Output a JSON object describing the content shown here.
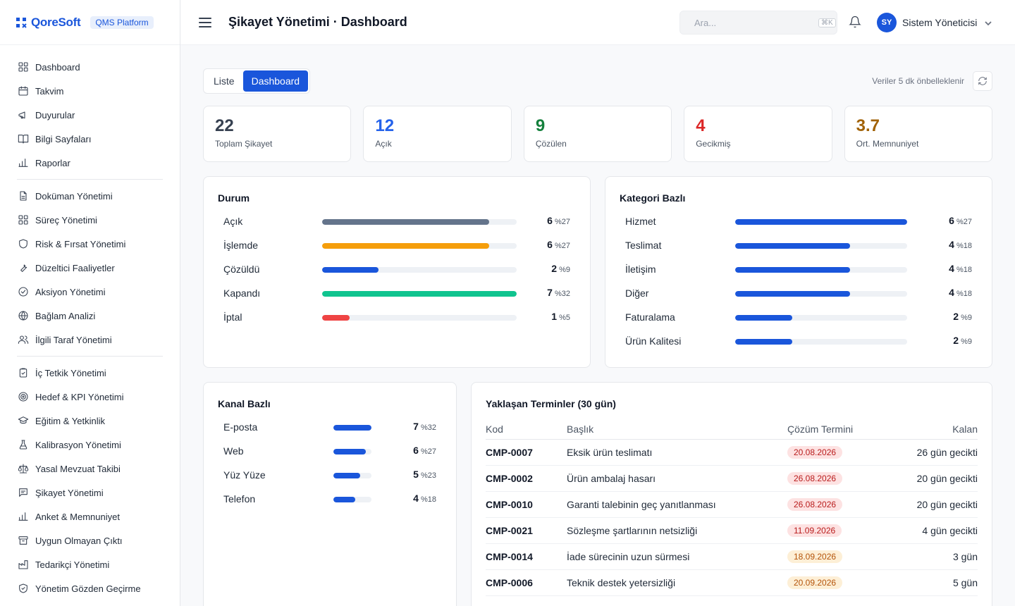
{
  "brand": {
    "name": "QoreSoft",
    "badge": "QMS Platform"
  },
  "header": {
    "title": "Şikayet Yönetimi · Dashboard",
    "search_placeholder": "Ara...",
    "search_shortcut": "⌘K",
    "user_initials": "SY",
    "user_name": "Sistem Yöneticisi"
  },
  "sidebar": {
    "groups": [
      [
        {
          "label": "Dashboard",
          "icon": "grid-icon"
        },
        {
          "label": "Takvim",
          "icon": "calendar-icon"
        },
        {
          "label": "Duyurular",
          "icon": "megaphone-icon"
        },
        {
          "label": "Bilgi Sayfaları",
          "icon": "book-icon"
        },
        {
          "label": "Raporlar",
          "icon": "bar-chart-icon"
        }
      ],
      [
        {
          "label": "Doküman Yönetimi",
          "icon": "document-icon"
        },
        {
          "label": "Süreç Yönetimi",
          "icon": "grid-icon"
        },
        {
          "label": "Risk & Fırsat Yönetimi",
          "icon": "shield-icon"
        },
        {
          "label": "Düzeltici Faaliyetler",
          "icon": "wrench-icon"
        },
        {
          "label": "Aksiyon Yönetimi",
          "icon": "check-circle-icon"
        },
        {
          "label": "Bağlam Analizi",
          "icon": "globe-icon"
        },
        {
          "label": "İlgili Taraf Yönetimi",
          "icon": "users-icon"
        }
      ],
      [
        {
          "label": "İç Tetkik Yönetimi",
          "icon": "clipboard-check-icon"
        },
        {
          "label": "Hedef & KPI Yönetimi",
          "icon": "target-icon"
        },
        {
          "label": "Eğitim & Yetkinlik",
          "icon": "graduation-cap-icon"
        },
        {
          "label": "Kalibrasyon Yönetimi",
          "icon": "flask-icon"
        },
        {
          "label": "Yasal Mevzuat Takibi",
          "icon": "scale-icon"
        },
        {
          "label": "Şikayet Yönetimi",
          "icon": "message-icon"
        },
        {
          "label": "Anket & Memnuniyet",
          "icon": "bar-chart-icon"
        },
        {
          "label": "Uygun Olmayan Çıktı",
          "icon": "archive-icon"
        },
        {
          "label": "Tedarikçi Yönetimi",
          "icon": "factory-icon"
        },
        {
          "label": "Yönetim Gözden Geçirme",
          "icon": "shield-check-icon"
        }
      ]
    ]
  },
  "toolbar": {
    "tabs": [
      {
        "label": "Liste",
        "active": false
      },
      {
        "label": "Dashboard",
        "active": true
      }
    ],
    "cache_note": "Veriler 5 dk önbelleklenir"
  },
  "kpis": [
    {
      "value": "22",
      "label": "Toplam Şikayet",
      "color": "#374151"
    },
    {
      "value": "12",
      "label": "Açık",
      "color": "#2563eb"
    },
    {
      "value": "9",
      "label": "Çözülen",
      "color": "#15803d"
    },
    {
      "value": "4",
      "label": "Gecikmiş",
      "color": "#dc2626"
    },
    {
      "value": "3.7",
      "label": "Ort. Memnuniyet",
      "color": "#a16207"
    }
  ],
  "status_card": {
    "title": "Durum",
    "rows": [
      {
        "label": "Açık",
        "count": "6",
        "pct": "%27",
        "fraction": 0.86,
        "color": "#64748b"
      },
      {
        "label": "İşlemde",
        "count": "6",
        "pct": "%27",
        "fraction": 0.86,
        "color": "#f59e0b"
      },
      {
        "label": "Çözüldü",
        "count": "2",
        "pct": "%9",
        "fraction": 0.29,
        "color": "#1a56db"
      },
      {
        "label": "Kapandı",
        "count": "7",
        "pct": "%32",
        "fraction": 1.0,
        "color": "#10c48f"
      },
      {
        "label": "İptal",
        "count": "1",
        "pct": "%5",
        "fraction": 0.14,
        "color": "#ef4444"
      }
    ]
  },
  "category_card": {
    "title": "Kategori Bazlı",
    "rows": [
      {
        "label": "Hizmet",
        "count": "6",
        "pct": "%27",
        "fraction": 1.0,
        "color": "#1a56db"
      },
      {
        "label": "Teslimat",
        "count": "4",
        "pct": "%18",
        "fraction": 0.67,
        "color": "#1a56db"
      },
      {
        "label": "İletişim",
        "count": "4",
        "pct": "%18",
        "fraction": 0.67,
        "color": "#1a56db"
      },
      {
        "label": "Diğer",
        "count": "4",
        "pct": "%18",
        "fraction": 0.67,
        "color": "#1a56db"
      },
      {
        "label": "Faturalama",
        "count": "2",
        "pct": "%9",
        "fraction": 0.33,
        "color": "#1a56db"
      },
      {
        "label": "Ürün Kalitesi",
        "count": "2",
        "pct": "%9",
        "fraction": 0.33,
        "color": "#1a56db"
      }
    ]
  },
  "channel_card": {
    "title": "Kanal Bazlı",
    "rows": [
      {
        "label": "E-posta",
        "count": "7",
        "pct": "%32",
        "fraction": 1.0,
        "color": "#1a56db"
      },
      {
        "label": "Web",
        "count": "6",
        "pct": "%27",
        "fraction": 0.86,
        "color": "#1a56db"
      },
      {
        "label": "Yüz Yüze",
        "count": "5",
        "pct": "%23",
        "fraction": 0.71,
        "color": "#1a56db"
      },
      {
        "label": "Telefon",
        "count": "4",
        "pct": "%18",
        "fraction": 0.57,
        "color": "#1a56db"
      }
    ]
  },
  "deadlines": {
    "title": "Yaklaşan Terminler (30 gün)",
    "columns": [
      "Kod",
      "Başlık",
      "Çözüm Termini",
      "Kalan"
    ],
    "rows": [
      {
        "code": "CMP-0007",
        "title": "Eksik ürün teslimatı",
        "date": "20.08.2026",
        "remaining": "26 gün gecikti",
        "tone": "red"
      },
      {
        "code": "CMP-0002",
        "title": "Ürün ambalaj hasarı",
        "date": "26.08.2026",
        "remaining": "20 gün gecikti",
        "tone": "red"
      },
      {
        "code": "CMP-0010",
        "title": "Garanti talebinin geç yanıtlanması",
        "date": "26.08.2026",
        "remaining": "20 gün gecikti",
        "tone": "red"
      },
      {
        "code": "CMP-0021",
        "title": "Sözleşme şartlarının netsizliği",
        "date": "11.09.2026",
        "remaining": "4 gün gecikti",
        "tone": "red"
      },
      {
        "code": "CMP-0014",
        "title": "İade sürecinin uzun sürmesi",
        "date": "18.09.2026",
        "remaining": "3 gün",
        "tone": "amber"
      },
      {
        "code": "CMP-0006",
        "title": "Teknik destek yetersizliği",
        "date": "20.09.2026",
        "remaining": "5 gün",
        "tone": "amber"
      }
    ]
  }
}
